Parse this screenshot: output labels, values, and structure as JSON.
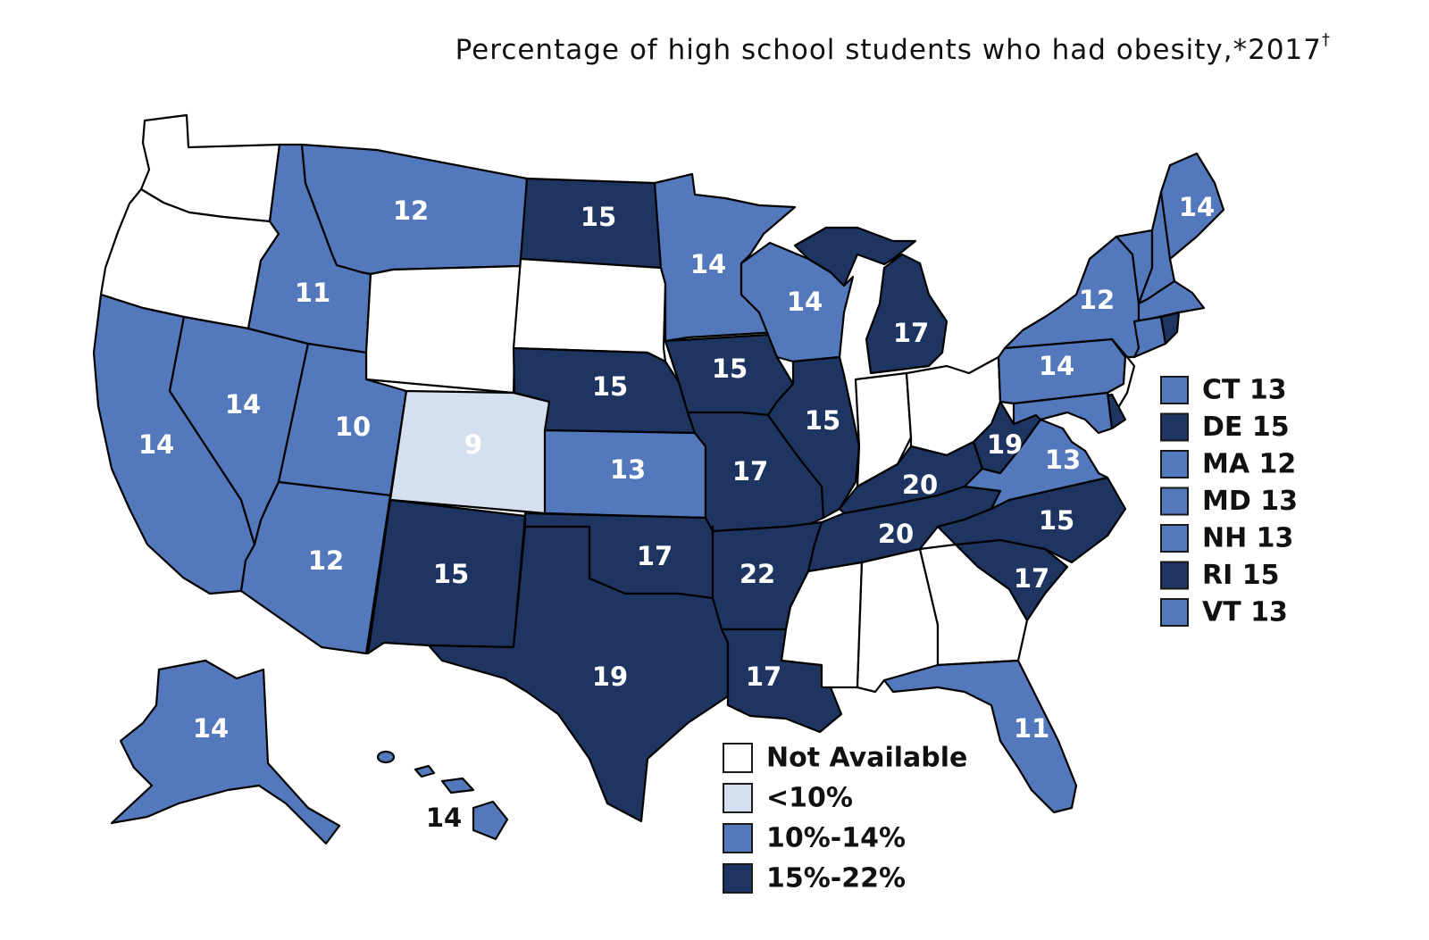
{
  "title": {
    "text": "Percentage of high school students who had obesity,*2017",
    "superscript": "†"
  },
  "colors": {
    "not_available": "#ffffff",
    "lt10": "#d4dff0",
    "b10_14": "#5478bc",
    "b15_22": "#1e3461",
    "label_light": "#ffffff",
    "label_dark": "#111111"
  },
  "states": [
    {
      "id": "WA",
      "value": null,
      "label": ""
    },
    {
      "id": "OR",
      "value": null,
      "label": ""
    },
    {
      "id": "CA",
      "value": 14,
      "label": "14"
    },
    {
      "id": "NV",
      "value": 14,
      "label": "14"
    },
    {
      "id": "ID",
      "value": 11,
      "label": "11"
    },
    {
      "id": "MT",
      "value": 12,
      "label": "12"
    },
    {
      "id": "WY",
      "value": null,
      "label": ""
    },
    {
      "id": "UT",
      "value": 10,
      "label": "10"
    },
    {
      "id": "AZ",
      "value": 12,
      "label": "12"
    },
    {
      "id": "CO",
      "value": 9,
      "label": "9"
    },
    {
      "id": "NM",
      "value": 15,
      "label": "15"
    },
    {
      "id": "ND",
      "value": 15,
      "label": "15"
    },
    {
      "id": "SD",
      "value": null,
      "label": ""
    },
    {
      "id": "NE",
      "value": 15,
      "label": "15"
    },
    {
      "id": "KS",
      "value": 13,
      "label": "13"
    },
    {
      "id": "OK",
      "value": 17,
      "label": "17"
    },
    {
      "id": "TX",
      "value": 19,
      "label": "19"
    },
    {
      "id": "MN",
      "value": 14,
      "label": "14"
    },
    {
      "id": "IA",
      "value": 15,
      "label": "15"
    },
    {
      "id": "MO",
      "value": 17,
      "label": "17"
    },
    {
      "id": "AR",
      "value": 22,
      "label": "22"
    },
    {
      "id": "LA",
      "value": 17,
      "label": "17"
    },
    {
      "id": "WI",
      "value": 14,
      "label": "14"
    },
    {
      "id": "IL",
      "value": 15,
      "label": "15"
    },
    {
      "id": "MI",
      "value": 17,
      "label": "17"
    },
    {
      "id": "IN",
      "value": null,
      "label": ""
    },
    {
      "id": "OH",
      "value": null,
      "label": ""
    },
    {
      "id": "KY",
      "value": 20,
      "label": "20"
    },
    {
      "id": "TN",
      "value": 20,
      "label": "20"
    },
    {
      "id": "MS",
      "value": null,
      "label": ""
    },
    {
      "id": "AL",
      "value": null,
      "label": ""
    },
    {
      "id": "GA",
      "value": null,
      "label": ""
    },
    {
      "id": "FL",
      "value": 11,
      "label": "11"
    },
    {
      "id": "SC",
      "value": 17,
      "label": "17"
    },
    {
      "id": "NC",
      "value": 15,
      "label": "15"
    },
    {
      "id": "VA",
      "value": 13,
      "label": "13"
    },
    {
      "id": "WV",
      "value": 19,
      "label": "19"
    },
    {
      "id": "PA",
      "value": 14,
      "label": "14"
    },
    {
      "id": "NY",
      "value": 12,
      "label": "12"
    },
    {
      "id": "NJ",
      "value": null,
      "label": ""
    },
    {
      "id": "ME",
      "value": 14,
      "label": "14"
    },
    {
      "id": "VT",
      "value": 13,
      "label": ""
    },
    {
      "id": "NH",
      "value": 13,
      "label": ""
    },
    {
      "id": "MA",
      "value": 12,
      "label": ""
    },
    {
      "id": "CT",
      "value": 13,
      "label": ""
    },
    {
      "id": "RI",
      "value": 15,
      "label": ""
    },
    {
      "id": "DE",
      "value": 15,
      "label": ""
    },
    {
      "id": "MD",
      "value": 13,
      "label": ""
    },
    {
      "id": "AK",
      "value": 14,
      "label": "14"
    },
    {
      "id": "HI",
      "value": 14,
      "label": "14"
    }
  ],
  "side_list": [
    {
      "state": "CT",
      "value": 13,
      "text": "CT 13"
    },
    {
      "state": "DE",
      "value": 15,
      "text": "DE 15"
    },
    {
      "state": "MA",
      "value": 12,
      "text": "MA 12"
    },
    {
      "state": "MD",
      "value": 13,
      "text": "MD 13"
    },
    {
      "state": "NH",
      "value": 13,
      "text": "NH 13"
    },
    {
      "state": "RI",
      "value": 15,
      "text": "RI 15"
    },
    {
      "state": "VT",
      "value": 13,
      "text": "VT 13"
    }
  ],
  "legend": [
    {
      "label": "Not Available",
      "color": "#ffffff"
    },
    {
      "label": "<10%",
      "color": "#d4dff0"
    },
    {
      "label": "10%-14%",
      "color": "#5478bc"
    },
    {
      "label": "15%-22%",
      "color": "#1e3461"
    }
  ]
}
